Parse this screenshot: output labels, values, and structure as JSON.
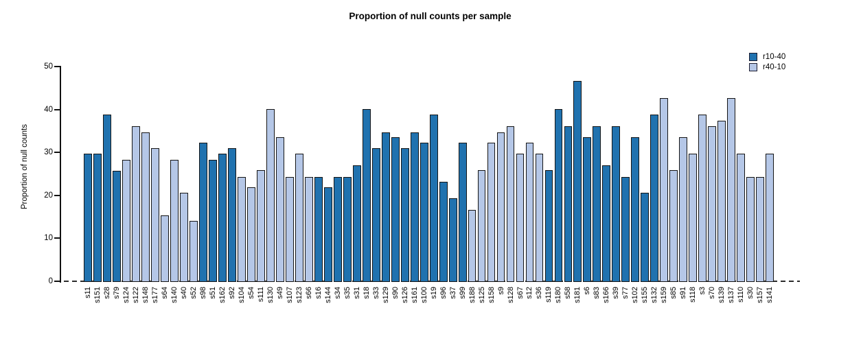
{
  "title": "Proportion of null counts per sample",
  "legend": [
    {
      "label": "r10-40",
      "color": "#2072af"
    },
    {
      "label": "r40-10",
      "color": "#b5c7e7"
    }
  ],
  "chart_data": {
    "type": "bar",
    "title": "Proportion of null counts per sample",
    "xlabel": "",
    "ylabel": "Proportion of null counts",
    "ylim": [
      0,
      50
    ],
    "yticks": [
      0,
      10,
      20,
      30,
      40,
      50
    ],
    "grid": false,
    "legend_position": "top-right",
    "zero_line": "dashed",
    "series": [
      {
        "name": "r10-40",
        "color": "#2072af"
      },
      {
        "name": "r40-10",
        "color": "#b5c7e7"
      }
    ],
    "bars": [
      {
        "label": "s11",
        "value": 29.8,
        "series": "r10-40"
      },
      {
        "label": "s151",
        "value": 29.8,
        "series": "r10-40"
      },
      {
        "label": "s28",
        "value": 38.9,
        "series": "r10-40"
      },
      {
        "label": "s79",
        "value": 25.9,
        "series": "r10-40"
      },
      {
        "label": "s124",
        "value": 28.5,
        "series": "r40-10"
      },
      {
        "label": "s122",
        "value": 36.3,
        "series": "r40-10"
      },
      {
        "label": "s148",
        "value": 34.9,
        "series": "r40-10"
      },
      {
        "label": "s177",
        "value": 31.2,
        "series": "r40-10"
      },
      {
        "label": "s64",
        "value": 15.5,
        "series": "r40-10"
      },
      {
        "label": "s140",
        "value": 28.5,
        "series": "r40-10"
      },
      {
        "label": "s40",
        "value": 20.8,
        "series": "r40-10"
      },
      {
        "label": "s52",
        "value": 14.2,
        "series": "r40-10"
      },
      {
        "label": "s98",
        "value": 32.4,
        "series": "r10-40"
      },
      {
        "label": "s51",
        "value": 28.5,
        "series": "r10-40"
      },
      {
        "label": "s162",
        "value": 29.8,
        "series": "r10-40"
      },
      {
        "label": "s92",
        "value": 31.2,
        "series": "r10-40"
      },
      {
        "label": "s104",
        "value": 24.5,
        "series": "r40-10"
      },
      {
        "label": "s54",
        "value": 22.0,
        "series": "r40-10"
      },
      {
        "label": "s111",
        "value": 26.0,
        "series": "r40-10"
      },
      {
        "label": "s130",
        "value": 40.2,
        "series": "r40-10"
      },
      {
        "label": "s49",
        "value": 33.7,
        "series": "r40-10"
      },
      {
        "label": "s107",
        "value": 24.5,
        "series": "r40-10"
      },
      {
        "label": "s123",
        "value": 29.8,
        "series": "r40-10"
      },
      {
        "label": "s66",
        "value": 24.5,
        "series": "r40-10"
      },
      {
        "label": "s16",
        "value": 24.5,
        "series": "r10-40"
      },
      {
        "label": "s144",
        "value": 22.0,
        "series": "r10-40"
      },
      {
        "label": "s34",
        "value": 24.5,
        "series": "r10-40"
      },
      {
        "label": "s35",
        "value": 24.5,
        "series": "r10-40"
      },
      {
        "label": "s31",
        "value": 27.2,
        "series": "r10-40"
      },
      {
        "label": "s18",
        "value": 40.2,
        "series": "r10-40"
      },
      {
        "label": "s33",
        "value": 31.2,
        "series": "r10-40"
      },
      {
        "label": "s129",
        "value": 34.9,
        "series": "r10-40"
      },
      {
        "label": "s90",
        "value": 33.7,
        "series": "r10-40"
      },
      {
        "label": "s126",
        "value": 31.2,
        "series": "r10-40"
      },
      {
        "label": "s161",
        "value": 34.9,
        "series": "r10-40"
      },
      {
        "label": "s100",
        "value": 32.4,
        "series": "r10-40"
      },
      {
        "label": "s19",
        "value": 38.9,
        "series": "r10-40"
      },
      {
        "label": "s96",
        "value": 23.3,
        "series": "r10-40"
      },
      {
        "label": "s37",
        "value": 19.5,
        "series": "r10-40"
      },
      {
        "label": "s99",
        "value": 32.4,
        "series": "r10-40"
      },
      {
        "label": "s188",
        "value": 16.8,
        "series": "r40-10"
      },
      {
        "label": "s125",
        "value": 26.0,
        "series": "r40-10"
      },
      {
        "label": "s158",
        "value": 32.4,
        "series": "r40-10"
      },
      {
        "label": "s9",
        "value": 34.9,
        "series": "r40-10"
      },
      {
        "label": "s128",
        "value": 36.3,
        "series": "r40-10"
      },
      {
        "label": "s67",
        "value": 29.8,
        "series": "r40-10"
      },
      {
        "label": "s12",
        "value": 32.4,
        "series": "r40-10"
      },
      {
        "label": "s36",
        "value": 29.8,
        "series": "r40-10"
      },
      {
        "label": "s119",
        "value": 26.0,
        "series": "r10-40"
      },
      {
        "label": "s180",
        "value": 40.2,
        "series": "r10-40"
      },
      {
        "label": "s58",
        "value": 36.3,
        "series": "r10-40"
      },
      {
        "label": "s181",
        "value": 46.8,
        "series": "r10-40"
      },
      {
        "label": "s6",
        "value": 33.7,
        "series": "r10-40"
      },
      {
        "label": "s83",
        "value": 36.3,
        "series": "r10-40"
      },
      {
        "label": "s166",
        "value": 27.2,
        "series": "r10-40"
      },
      {
        "label": "s39",
        "value": 36.3,
        "series": "r10-40"
      },
      {
        "label": "s77",
        "value": 24.5,
        "series": "r10-40"
      },
      {
        "label": "s102",
        "value": 33.7,
        "series": "r10-40"
      },
      {
        "label": "s155",
        "value": 20.8,
        "series": "r10-40"
      },
      {
        "label": "s132",
        "value": 38.9,
        "series": "r10-40"
      },
      {
        "label": "s159",
        "value": 42.8,
        "series": "r40-10"
      },
      {
        "label": "s85",
        "value": 26.0,
        "series": "r40-10"
      },
      {
        "label": "s91",
        "value": 33.7,
        "series": "r40-10"
      },
      {
        "label": "s118",
        "value": 29.8,
        "series": "r40-10"
      },
      {
        "label": "s3",
        "value": 38.9,
        "series": "r40-10"
      },
      {
        "label": "s70",
        "value": 36.3,
        "series": "r40-10"
      },
      {
        "label": "s139",
        "value": 37.6,
        "series": "r40-10"
      },
      {
        "label": "s137",
        "value": 42.8,
        "series": "r40-10"
      },
      {
        "label": "s110",
        "value": 29.8,
        "series": "r40-10"
      },
      {
        "label": "s30",
        "value": 24.5,
        "series": "r40-10"
      },
      {
        "label": "s157",
        "value": 24.5,
        "series": "r40-10"
      },
      {
        "label": "s141",
        "value": 29.8,
        "series": "r40-10"
      }
    ]
  }
}
